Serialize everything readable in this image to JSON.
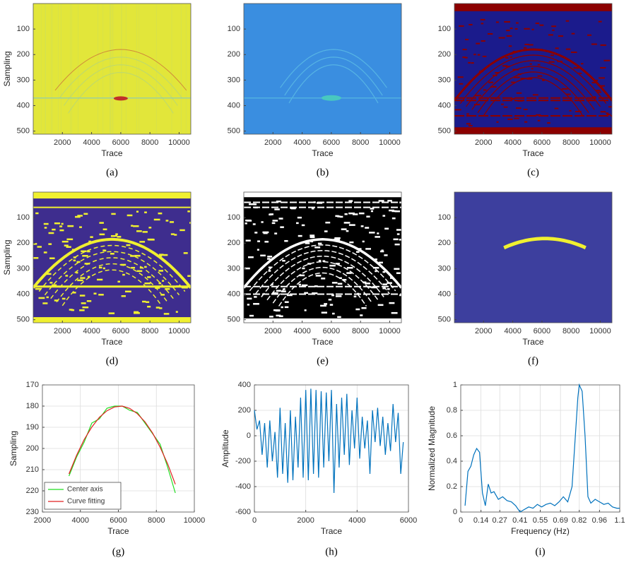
{
  "chart_data": [
    {
      "type": "image",
      "caption": "(a)",
      "xlabel": "Trace",
      "ylabel": "Sampling",
      "xlim": [
        0,
        10800
      ],
      "ylim": [
        0,
        512
      ],
      "y_reversed": true,
      "xticks": [
        2000,
        4000,
        6000,
        8000,
        10000
      ],
      "yticks": [
        100,
        200,
        300,
        400,
        500
      ]
    },
    {
      "type": "image",
      "caption": "(b)",
      "xlabel": "Trace",
      "xlim": [
        0,
        10800
      ],
      "ylim": [
        0,
        512
      ],
      "y_reversed": true,
      "xticks": [
        2000,
        4000,
        6000,
        8000,
        10000
      ],
      "yticks": [
        100,
        200,
        300,
        400,
        500
      ]
    },
    {
      "type": "image",
      "caption": "(c)",
      "xlabel": "Trace",
      "xlim": [
        0,
        10800
      ],
      "ylim": [
        0,
        512
      ],
      "y_reversed": true,
      "xticks": [
        2000,
        4000,
        6000,
        8000,
        10000
      ],
      "yticks": [
        100,
        200,
        300,
        400,
        500
      ]
    },
    {
      "type": "image",
      "caption": "(d)",
      "xlabel": "Trace",
      "ylabel": "Sampling",
      "xlim": [
        0,
        10800
      ],
      "ylim": [
        0,
        512
      ],
      "y_reversed": true,
      "xticks": [
        2000,
        4000,
        6000,
        8000,
        10000
      ],
      "yticks": [
        100,
        200,
        300,
        400,
        500
      ]
    },
    {
      "type": "image",
      "caption": "(e)",
      "xlabel": "Trace",
      "xlim": [
        0,
        10800
      ],
      "ylim": [
        0,
        512
      ],
      "y_reversed": true,
      "xticks": [
        2000,
        4000,
        6000,
        8000,
        10000
      ],
      "yticks": [
        100,
        200,
        300,
        400,
        500
      ]
    },
    {
      "type": "image",
      "caption": "(f)",
      "xlabel": "Trace",
      "xlim": [
        0,
        10800
      ],
      "ylim": [
        0,
        512
      ],
      "y_reversed": true,
      "xticks": [
        2000,
        4000,
        6000,
        8000,
        10000
      ],
      "yticks": [
        100,
        200,
        300,
        400,
        500
      ]
    },
    {
      "type": "line",
      "caption": "(g)",
      "xlabel": "Trace",
      "ylabel": "Sampling",
      "xlim": [
        2000,
        10000
      ],
      "ylim": [
        170,
        230
      ],
      "y_reversed": true,
      "xticks": [
        2000,
        4000,
        6000,
        8000,
        10000
      ],
      "yticks": [
        170,
        180,
        190,
        200,
        210,
        220,
        230
      ],
      "grid": true,
      "legend": "lower-left",
      "x": [
        3400,
        3800,
        4200,
        4600,
        5000,
        5400,
        5800,
        6200,
        6600,
        7000,
        7400,
        7800,
        8200,
        8600,
        9000
      ],
      "series": [
        {
          "name": "Center axis",
          "color": "#22dd22",
          "values": [
            213,
            204,
            197,
            188,
            186,
            181,
            180,
            180,
            182,
            183,
            188,
            193,
            198,
            209,
            221
          ]
        },
        {
          "name": "Curve fitting",
          "color": "#e02020",
          "values": [
            212.0,
            203.2,
            195.8,
            189.9,
            185.3,
            182.2,
            180.4,
            180.0,
            181.1,
            183.6,
            187.4,
            192.7,
            199.4,
            207.4,
            216.9
          ]
        }
      ]
    },
    {
      "type": "line",
      "caption": "(h)",
      "xlabel": "Trace",
      "ylabel": "Amplitude",
      "xlim": [
        0,
        6000
      ],
      "ylim": [
        -600,
        400
      ],
      "xticks": [
        0,
        2000,
        4000,
        6000
      ],
      "yticks": [
        -600,
        -400,
        -200,
        0,
        200,
        400
      ],
      "grid": true,
      "x": [
        0,
        100,
        200,
        300,
        400,
        500,
        600,
        700,
        800,
        900,
        1000,
        1100,
        1200,
        1300,
        1400,
        1500,
        1600,
        1700,
        1800,
        1900,
        2000,
        2100,
        2200,
        2300,
        2400,
        2500,
        2600,
        2700,
        2800,
        2900,
        3000,
        3100,
        3200,
        3300,
        3400,
        3500,
        3600,
        3700,
        3800,
        3900,
        4000,
        4100,
        4200,
        4300,
        4400,
        4500,
        4600,
        4700,
        4800,
        4900,
        5000,
        5100,
        5200,
        5300,
        5400,
        5500,
        5600,
        5700,
        5800
      ],
      "series": [
        {
          "color": "#0072bd",
          "values": [
            200,
            50,
            120,
            -150,
            100,
            -250,
            120,
            -200,
            30,
            -330,
            220,
            -300,
            100,
            -370,
            200,
            -350,
            150,
            -250,
            300,
            -330,
            360,
            -350,
            370,
            -300,
            360,
            -330,
            350,
            -250,
            340,
            -200,
            360,
            -450,
            250,
            -250,
            300,
            -150,
            330,
            -230,
            200,
            -100,
            300,
            -180,
            150,
            -100,
            120,
            -300,
            200,
            -50,
            220,
            -80,
            150,
            -150,
            100,
            -120,
            250,
            -50,
            180,
            -300,
            -50
          ]
        }
      ]
    },
    {
      "type": "line",
      "caption": "(i)",
      "xlabel": "Frequency (Hz)",
      "ylabel": "Normalized Magnitude",
      "xlim": [
        0,
        1.1
      ],
      "ylim": [
        0,
        1
      ],
      "xticks": [
        0,
        0.14,
        0.27,
        0.41,
        0.55,
        0.69,
        0.82,
        0.96,
        1.1
      ],
      "yticks": [
        0,
        0.2,
        0.4,
        0.6,
        0.8,
        1
      ],
      "grid": true,
      "x": [
        0.03,
        0.05,
        0.07,
        0.09,
        0.11,
        0.13,
        0.15,
        0.17,
        0.19,
        0.21,
        0.23,
        0.26,
        0.29,
        0.32,
        0.35,
        0.38,
        0.41,
        0.44,
        0.47,
        0.5,
        0.53,
        0.56,
        0.59,
        0.62,
        0.65,
        0.68,
        0.71,
        0.74,
        0.77,
        0.79,
        0.81,
        0.82,
        0.84,
        0.86,
        0.88,
        0.9,
        0.93,
        0.96,
        0.99,
        1.02,
        1.05,
        1.08,
        1.1
      ],
      "series": [
        {
          "color": "#0072bd",
          "values": [
            0.05,
            0.32,
            0.36,
            0.45,
            0.5,
            0.47,
            0.15,
            0.05,
            0.22,
            0.15,
            0.16,
            0.1,
            0.12,
            0.09,
            0.08,
            0.05,
            0.0,
            0.02,
            0.04,
            0.03,
            0.06,
            0.04,
            0.06,
            0.07,
            0.05,
            0.08,
            0.12,
            0.08,
            0.2,
            0.55,
            0.9,
            1.0,
            0.95,
            0.6,
            0.12,
            0.07,
            0.1,
            0.08,
            0.06,
            0.07,
            0.04,
            0.03,
            0.03
          ]
        }
      ]
    }
  ]
}
